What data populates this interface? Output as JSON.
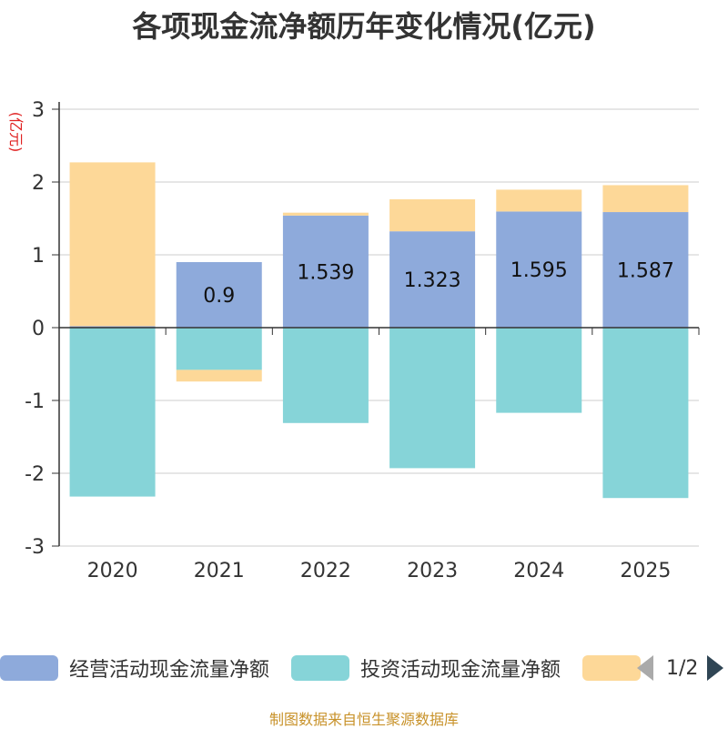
{
  "title": "各项现金流净额历年变化情况(亿元)",
  "source": "制图数据来自恒生聚源数据库",
  "legend": {
    "items": [
      {
        "label": "经营活动现金流量净额",
        "color": "#8eaadb"
      },
      {
        "label": "投资活动现金流量净额",
        "color": "#86d4d8"
      },
      {
        "label": "",
        "color": "#fdd898"
      }
    ],
    "page": "1/2"
  },
  "chart_data": {
    "type": "bar",
    "stacked": true,
    "title": "各项现金流净额历年变化情况(亿元)",
    "ylabel": "(亿元)",
    "xlabel": "",
    "ylim": [
      -3,
      3
    ],
    "yticks": [
      3,
      2,
      1,
      0,
      -1,
      -2,
      -3
    ],
    "categories": [
      "2020",
      "2021",
      "2022",
      "2023",
      "2024",
      "2025"
    ],
    "series": [
      {
        "name": "经营活动现金流量净额",
        "color": "#8eaadb",
        "values": [
          0.02,
          0.9,
          1.539,
          1.323,
          1.595,
          1.587
        ],
        "labels": [
          "",
          "0.9",
          "1.539",
          "1.323",
          "1.595",
          "1.587"
        ]
      },
      {
        "name": "投资活动现金流量净额",
        "color": "#86d4d8",
        "values": [
          -2.32,
          -0.58,
          -1.31,
          -1.93,
          -1.17,
          -2.34
        ]
      },
      {
        "name": "",
        "color": "#fdd898",
        "values": [
          2.25,
          -0.16,
          0.04,
          0.44,
          0.3,
          0.37
        ]
      }
    ]
  }
}
